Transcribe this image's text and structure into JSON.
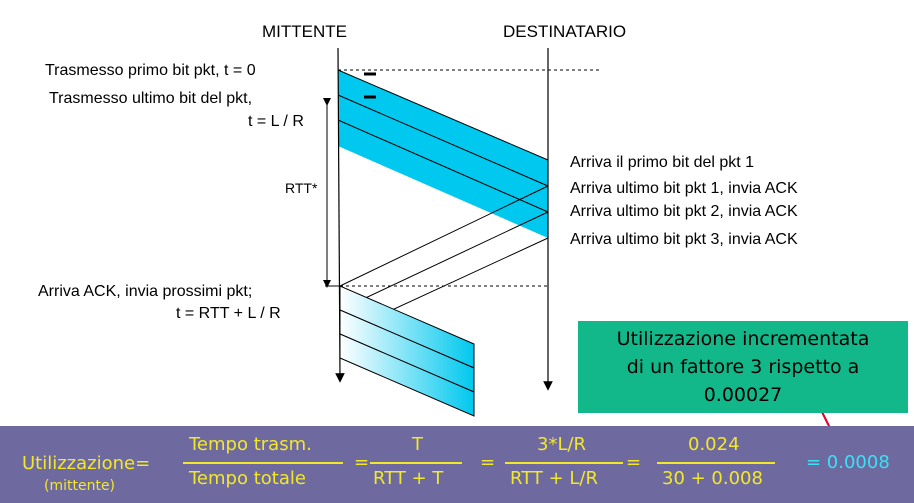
{
  "headers": {
    "sender": "MITTENTE",
    "receiver": "DESTINATARIO"
  },
  "sender_labels": {
    "first_bit": "Trasmesso primo bit pkt, t = 0",
    "last_bit_line1": "Trasmesso ultimo bit del pkt,",
    "last_bit_line2": "t = L / R",
    "rtt": "RTT*",
    "ack_line1": "Arriva ACK, invia prossimi pkt;",
    "ack_line2": "t = RTT + L / R"
  },
  "receiver_labels": [
    "Arriva il primo bit del pkt 1",
    "Arriva ultimo bit pkt 1, invia ACK",
    "Arriva ultimo bit pkt 2, invia ACK",
    "Arriva ultimo bit pkt 3, invia ACK"
  ],
  "callout": {
    "line1": "Utilizzazione incrementata",
    "line2": "di un fattore 3 rispetto a",
    "line3": "0.00027"
  },
  "formula": {
    "label": "Utilizzazione=",
    "label_sub": "(mittente)",
    "f1_num": "Tempo trasm.",
    "f1_den": "Tempo totale",
    "eq1": "=",
    "f2_num": "T",
    "f2_den": "RTT + T",
    "eq2": "=",
    "f3_num": "3*L/R",
    "f3_den": "RTT + L/R",
    "eq3": "=",
    "f4_num": "0.024",
    "f4_den": "30 + 0.008",
    "result": "= 0.0008"
  },
  "colors": {
    "packet_fill": "#00c8ee",
    "callout_bg": "#13b88a",
    "formula_bg": "#6e6aa0",
    "formula_text": "#f2e829",
    "result_text": "#39e1f5",
    "arrow_red": "#e0002a"
  }
}
